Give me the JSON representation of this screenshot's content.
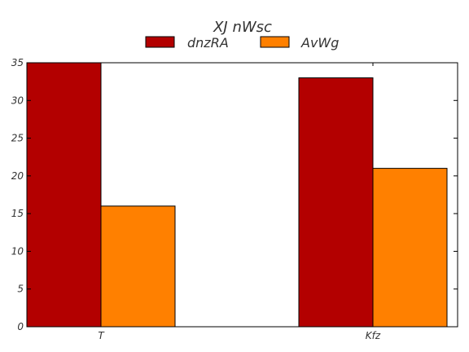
{
  "chart_data": {
    "type": "bar",
    "title": "XJ  nWsc",
    "categories": [
      "T",
      "Kfz"
    ],
    "series": [
      {
        "name": "dnzRA",
        "values": [
          35,
          33
        ],
        "color": "#b30000"
      },
      {
        "name": "AvWg",
        "values": [
          16,
          21
        ],
        "color": "#ff8000"
      }
    ],
    "ylim": [
      0,
      35
    ],
    "yticks": [
      0,
      5,
      10,
      15,
      20,
      25,
      30,
      35
    ],
    "grid": false,
    "legend_position": "top-center"
  }
}
